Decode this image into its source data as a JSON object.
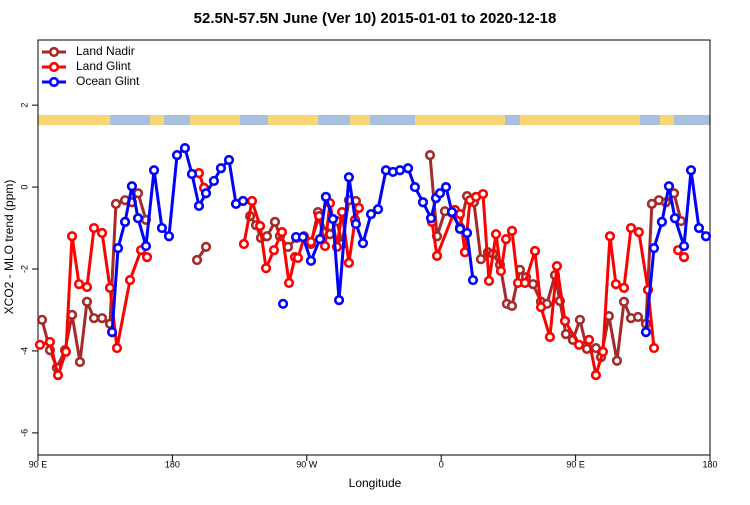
{
  "chart_data": {
    "type": "line",
    "title": "52.5N-57.5N June (Ver 10)   2015-01-01 to 2020-12-18",
    "x_label": "Longitude",
    "y_label": "XCO2 - MLO trend (ppm)",
    "xlim": [
      90,
      540
    ],
    "ylim": [
      -6.54,
      3.59
    ],
    "xticks": [
      {
        "value": 90,
        "label": "90 E"
      },
      {
        "value": 180,
        "label": "180"
      },
      {
        "value": 270,
        "label": "90 W"
      },
      {
        "value": 360,
        "label": "0"
      },
      {
        "value": 450,
        "label": "90 E"
      },
      {
        "value": 540,
        "label": "180"
      }
    ],
    "yticks": [
      2,
      0,
      -2,
      -4,
      -6
    ],
    "grid": false,
    "legend": "top-left",
    "series": [
      {
        "name": "Land Nadir",
        "color": "#a52a2a",
        "x": [
          92.7,
          98.0,
          102.7,
          108.1,
          112.8,
          118.1,
          122.8,
          127.5,
          132.9,
          138.2,
          142.2,
          148.3,
          152.9,
          157.0,
          162.3,
          185,
          196.5,
          202.5,
          230,
          232.0,
          236.0,
          239.3,
          243.3,
          248.7,
          252.0,
          257.4,
          263.4,
          268.1,
          272.8,
          277.5,
          282.8,
          285.5,
          290.2,
          293.6,
          298.2,
          302.9,
          330,
          352.5,
          357.2,
          362.5,
          367.2,
          372.6,
          377.3,
          381.9,
          386.6,
          391.3,
          394.7,
          399.4,
          404.0,
          407.4,
          412.7,
          416.8,
          421.5,
          426.8,
          430.8,
          436.2,
          439.5,
          443.5,
          448.2,
          452.9,
          457.6,
          463.6,
          467.0,
          472.3,
          477.7,
          482.4,
          487.1,
          491.8,
          497.1,
          501.1,
          505.8,
          510.5,
          515.9,
          520.6
        ],
        "values": [
          -3.24,
          -3.98,
          -4.41,
          -3.98,
          -3.12,
          -4.27,
          -2.8,
          -3.2,
          -3.2,
          -3.34,
          -0.41,
          -0.32,
          -0.37,
          -0.15,
          -0.8,
          null,
          -1.78,
          -1.46,
          null,
          -0.71,
          -0.93,
          -1.24,
          -1.2,
          -0.85,
          -1.2,
          -1.46,
          -1.24,
          -1.2,
          -1.39,
          -0.61,
          -1.1,
          -1.15,
          -0.83,
          -1.39,
          -0.32,
          -0.34,
          null,
          0.78,
          -1.2,
          -0.59,
          -0.63,
          -0.98,
          -0.22,
          -0.37,
          -1.76,
          -1.59,
          -1.63,
          -1.9,
          -2.85,
          -2.9,
          -2.02,
          -2.2,
          -2.37,
          -2.8,
          -2.85,
          -2.15,
          -2.78,
          -3.59,
          -3.73,
          -3.24,
          -3.95,
          -3.93,
          -4.15,
          -3.15,
          -4.24,
          -2.8,
          -3.2,
          -3.17,
          -3.34,
          -0.41,
          -0.32,
          -0.37,
          -0.15,
          -0.83
        ]
      },
      {
        "name": "Land Glint",
        "color": "#ff0000",
        "x": [
          91.3,
          98.0,
          103.4,
          108.7,
          112.8,
          117.5,
          122.8,
          127.5,
          132.9,
          138.2,
          142.9,
          151.6,
          159.0,
          163.0,
          180,
          197.8,
          201.2,
          225,
          227.9,
          233.3,
          238.7,
          242.7,
          248.0,
          253.4,
          258.1,
          262.1,
          264.1,
          268.1,
          272.8,
          278.2,
          282.2,
          285.5,
          290.2,
          293.6,
          298.2,
          302.3,
          304.9,
          330,
          353.8,
          357.2,
          369.2,
          372.6,
          375.9,
          379.3,
          383.3,
          388.0,
          392.0,
          396.7,
          400.0,
          403.4,
          407.4,
          411.4,
          416.1,
          422.8,
          426.8,
          432.8,
          437.5,
          442.9,
          452.3,
          459.0,
          463.6,
          468.3,
          473.0,
          477.0,
          482.4,
          487.1,
          492.4,
          498.5,
          502.5,
          515,
          518.6,
          522.6
        ],
        "values": [
          -3.85,
          -3.78,
          -4.59,
          -4.02,
          -1.2,
          -2.37,
          -2.44,
          -1.0,
          -1.12,
          -2.46,
          -3.93,
          -2.27,
          -1.54,
          -1.71,
          null,
          0.34,
          -0.02,
          null,
          -1.39,
          -0.34,
          -0.95,
          -1.98,
          -1.54,
          -1.1,
          -2.34,
          -1.71,
          -1.73,
          -1.24,
          -1.34,
          -0.71,
          -1.44,
          -0.39,
          -1.46,
          -0.61,
          -1.85,
          -0.8,
          -0.51,
          null,
          -0.85,
          -1.68,
          -0.56,
          -0.66,
          -1.59,
          -0.32,
          -0.24,
          -0.17,
          -2.29,
          -1.15,
          -2.05,
          -1.27,
          -1.07,
          -2.34,
          -2.34,
          -1.56,
          -2.93,
          -3.66,
          -1.93,
          -3.27,
          -3.85,
          -3.73,
          -4.59,
          -4.02,
          -1.2,
          -2.37,
          -2.46,
          -1.0,
          -1.1,
          -2.51,
          -3.93,
          null,
          -1.54,
          -1.71
        ]
      },
      {
        "name": "Ocean Glint",
        "color": "#0000ff",
        "x": [
          139.6,
          143.6,
          148.3,
          152.9,
          157.0,
          162.3,
          167.7,
          173.0,
          177.7,
          183.1,
          188.4,
          193.1,
          197.8,
          202.5,
          207.8,
          212.5,
          217.9,
          222.6,
          227.3,
          245,
          254.1,
          258,
          262.8,
          267.4,
          272.8,
          278.8,
          282.8,
          287.5,
          291.6,
          298.2,
          302.9,
          307.6,
          313.0,
          317.7,
          323.0,
          327.7,
          332.4,
          337.8,
          342.4,
          347.8,
          353.2,
          356.5,
          359.2,
          363.2,
          367.2,
          372.6,
          377.3,
          381.3,
          460,
          497.1,
          502.5,
          507.8,
          512.5,
          516.5,
          522.6,
          527.3,
          532.6,
          537.3
        ],
        "values": [
          -3.54,
          -1.49,
          -0.85,
          0.02,
          -0.76,
          -1.44,
          0.41,
          -1.0,
          -1.2,
          0.78,
          0.95,
          0.32,
          -0.46,
          -0.15,
          0.15,
          0.46,
          0.66,
          -0.41,
          -0.34,
          null,
          -2.85,
          null,
          -1.22,
          -1.22,
          -1.8,
          -1.27,
          -0.24,
          -0.78,
          -2.76,
          0.24,
          -0.9,
          -1.37,
          -0.66,
          -0.54,
          0.41,
          0.37,
          0.41,
          0.46,
          0.0,
          -0.37,
          -0.76,
          -0.27,
          -0.15,
          0.0,
          -0.61,
          -1.02,
          -1.12,
          -2.27,
          null,
          -3.54,
          -1.49,
          -0.85,
          0.02,
          -0.76,
          -1.44,
          0.41,
          -1.0,
          -1.2
        ]
      }
    ]
  }
}
